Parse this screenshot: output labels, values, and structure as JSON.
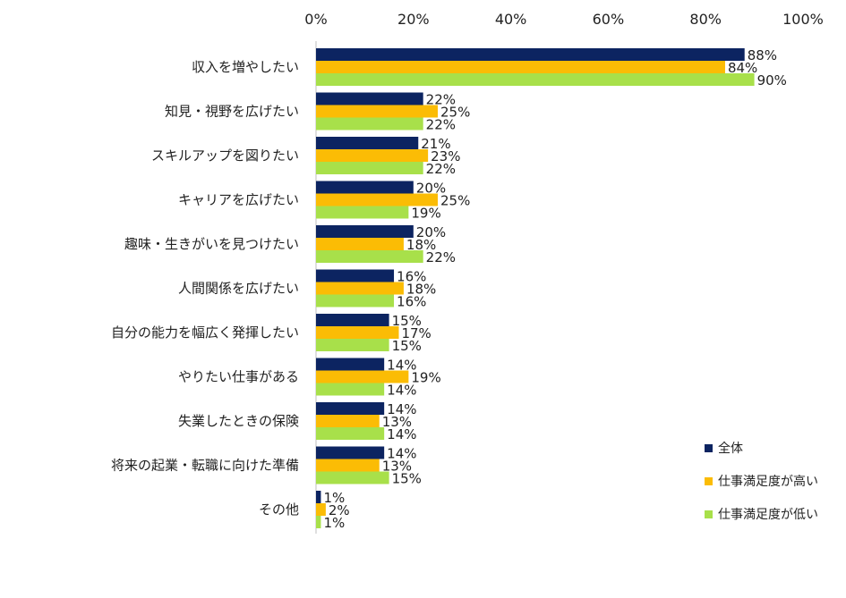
{
  "chart_data": {
    "type": "bar",
    "orientation": "horizontal",
    "categories": [
      "収入を増やしたい",
      "知見・視野を広げたい",
      "スキルアップを図りたい",
      "キャリアを広げたい",
      "趣味・生きがいを見つけたい",
      "人間関係を広げたい",
      "自分の能力を幅広く発揮したい",
      "やりたい仕事がある",
      "失業したときの保険",
      "将来の起業・転職に向けた準備",
      "その他"
    ],
    "series": [
      {
        "name": "全体",
        "color": "#0c2461",
        "values": [
          88,
          22,
          21,
          20,
          20,
          16,
          15,
          14,
          14,
          14,
          1
        ]
      },
      {
        "name": "仕事満足度が高い",
        "color": "#fbbc05",
        "values": [
          84,
          25,
          23,
          25,
          18,
          18,
          17,
          19,
          13,
          13,
          2
        ]
      },
      {
        "name": "仕事満足度が低い",
        "color": "#a8e04a",
        "values": [
          90,
          22,
          22,
          19,
          22,
          16,
          15,
          14,
          14,
          15,
          1
        ]
      }
    ],
    "xlim": [
      0,
      100
    ],
    "x_ticks": [
      "0%",
      "20%",
      "40%",
      "60%",
      "80%",
      "100%"
    ],
    "value_suffix": "%",
    "legend_position": "bottom-right",
    "grid": false
  }
}
